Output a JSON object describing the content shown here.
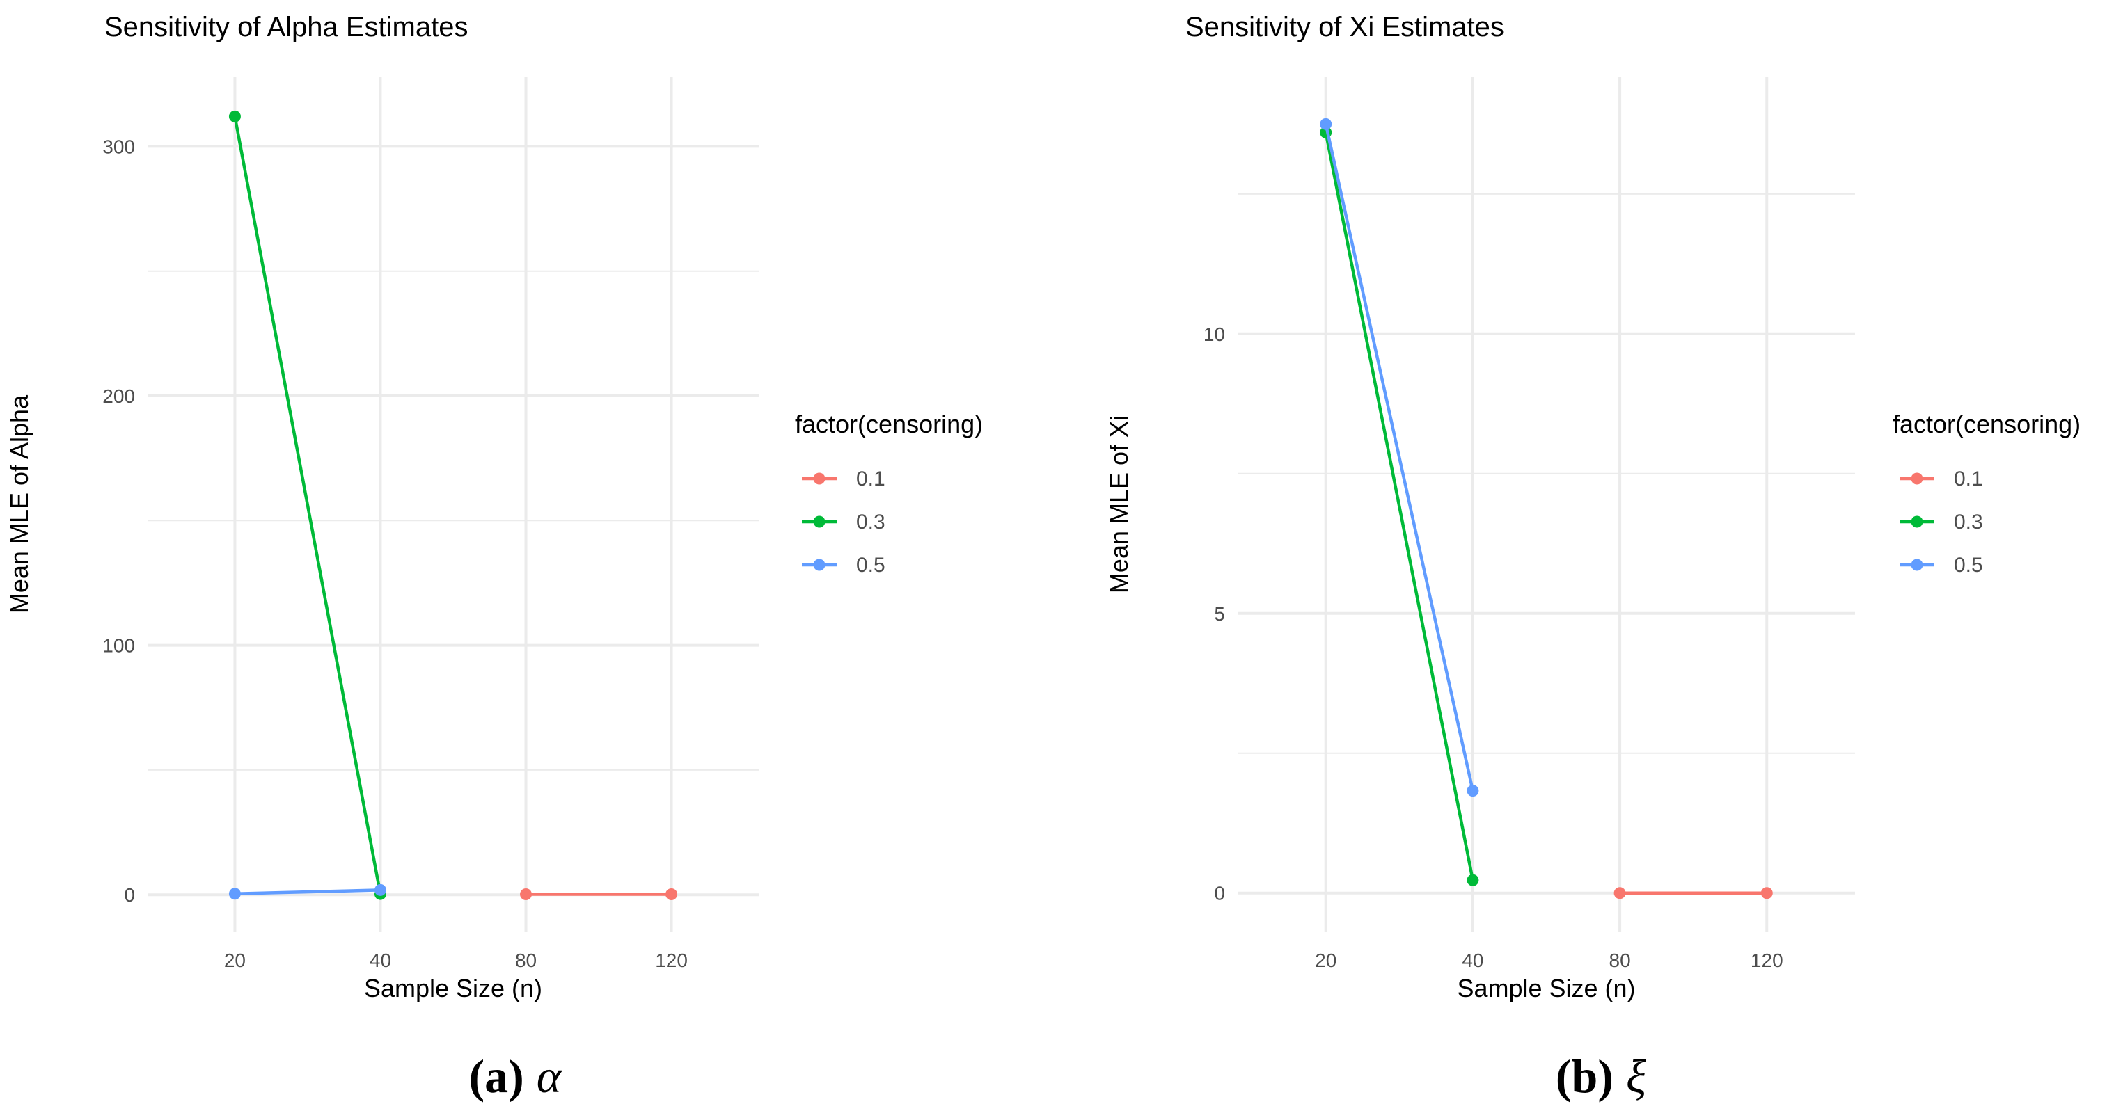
{
  "chart_data": [
    {
      "type": "line",
      "title": "Sensitivity of Alpha Estimates",
      "xlabel": "Sample Size (n)",
      "ylabel": "Mean MLE of Alpha",
      "categories": [
        "20",
        "40",
        "80",
        "120"
      ],
      "yticks": [
        "0",
        "100",
        "200",
        "300"
      ],
      "ylim": [
        -15,
        328
      ],
      "grid": true,
      "legend": {
        "title": "factor(censoring)",
        "placement": "right"
      },
      "series": [
        {
          "name": "0.1",
          "color": "#F8766D",
          "points": [
            [
              80,
              0.2
            ],
            [
              120,
              0.2
            ]
          ]
        },
        {
          "name": "0.3",
          "color": "#00BA38",
          "points": [
            [
              20,
              312
            ],
            [
              40,
              0.3
            ]
          ]
        },
        {
          "name": "0.5",
          "color": "#619CFF",
          "points": [
            [
              20,
              0.4
            ],
            [
              40,
              1.9
            ]
          ]
        }
      ],
      "caption": {
        "label": "(a)",
        "symbol": "α"
      }
    },
    {
      "type": "line",
      "title": "Sensitivity of Xi Estimates",
      "xlabel": "Sample Size (n)",
      "ylabel": "Mean MLE of Xi",
      "categories": [
        "20",
        "40",
        "80",
        "120"
      ],
      "yticks": [
        "0",
        "5",
        "10"
      ],
      "ylim": [
        -0.7,
        14.6
      ],
      "grid": true,
      "legend": {
        "title": "factor(censoring)",
        "placement": "right"
      },
      "series": [
        {
          "name": "0.1",
          "color": "#F8766D",
          "points": [
            [
              80,
              0.0
            ],
            [
              120,
              0.0
            ]
          ]
        },
        {
          "name": "0.3",
          "color": "#00BA38",
          "points": [
            [
              20,
              13.6
            ],
            [
              40,
              0.23
            ]
          ]
        },
        {
          "name": "0.5",
          "color": "#619CFF",
          "points": [
            [
              20,
              13.75
            ],
            [
              40,
              1.83
            ]
          ]
        }
      ],
      "caption": {
        "label": "(b)",
        "symbol": "ξ"
      }
    }
  ]
}
